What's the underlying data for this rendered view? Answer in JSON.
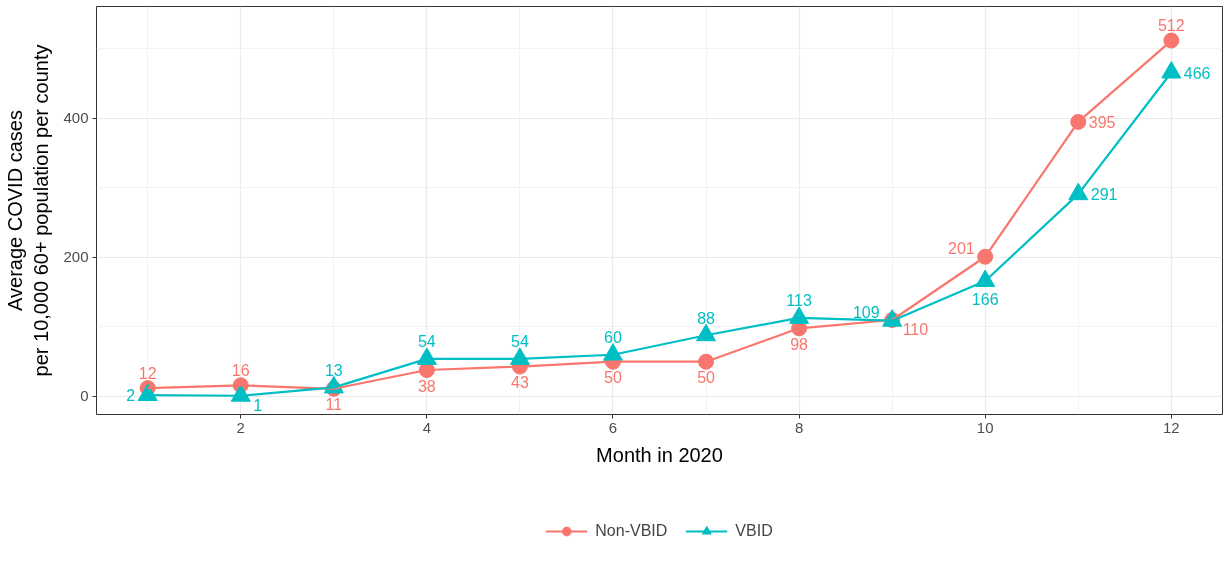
{
  "chart_data": {
    "type": "line",
    "xlabel": "Month in 2020",
    "ylabel": "Average COVID cases\nper 10,000 60+ population per county",
    "x": [
      1,
      2,
      3,
      4,
      5,
      6,
      7,
      8,
      9,
      10,
      11,
      12
    ],
    "xlim": [
      0.45,
      12.55
    ],
    "xticks": [
      2,
      4,
      6,
      8,
      10,
      12
    ],
    "ylim": [
      -26,
      561
    ],
    "yticks": [
      0,
      200,
      400
    ],
    "grid": true,
    "legend": "bottom",
    "data_labels": true,
    "line_style": "solid",
    "series": [
      {
        "name": "Non-VBID",
        "color": "#f8766d",
        "marker": "circle",
        "values": [
          12,
          16,
          11,
          38,
          43,
          50,
          50,
          98,
          110,
          201,
          395,
          512
        ]
      },
      {
        "name": "VBID",
        "color": "#00bfc4",
        "marker": "triangle",
        "values": [
          2,
          1,
          13,
          54,
          54,
          60,
          88,
          113,
          109,
          166,
          291,
          466
        ]
      }
    ]
  }
}
